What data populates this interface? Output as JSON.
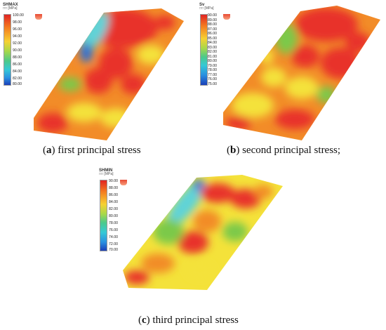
{
  "panels": [
    {
      "id": "a",
      "legend_title": "SHMAX",
      "legend_unit": "□□ [MPa]",
      "ticks": [
        "100.00",
        "98.00",
        "96.00",
        "94.00",
        "92.00",
        "90.00",
        "88.00",
        "86.00",
        "84.00",
        "82.00",
        "80.00"
      ],
      "caption_letter": "a",
      "caption_text": " first principal stress"
    },
    {
      "id": "b",
      "legend_title": "Sv",
      "legend_unit": "□□ [MPa]",
      "ticks": [
        "90.00",
        "89.00",
        "88.00",
        "87.00",
        "86.00",
        "85.00",
        "84.00",
        "83.00",
        "82.00",
        "81.00",
        "80.00",
        "79.00",
        "78.00",
        "77.00",
        "76.00",
        "75.00"
      ],
      "caption_letter": "b",
      "caption_text": " second principal stress;"
    },
    {
      "id": "c",
      "legend_title": "SHMIN",
      "legend_unit": "□□ [MPa]",
      "ticks": [
        "90.00",
        "88.00",
        "86.00",
        "84.00",
        "82.00",
        "80.00",
        "78.00",
        "76.00",
        "74.00",
        "72.00",
        "70.00"
      ],
      "caption_letter": "c",
      "caption_text": " third principal stress"
    }
  ],
  "colors": {
    "red": "#e8322a",
    "orange": "#f28c28",
    "yellow": "#f4e23a",
    "green": "#7cc94a",
    "cyan": "#5ed3d8",
    "blue": "#2a6fd9"
  }
}
